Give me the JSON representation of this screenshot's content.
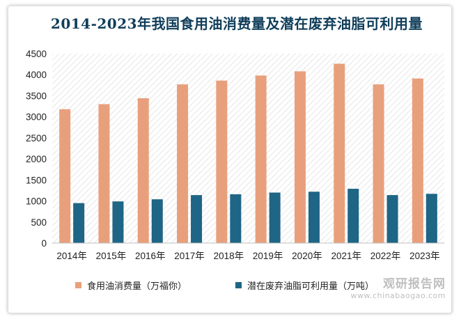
{
  "chart_data": {
    "type": "bar",
    "title": "2014-2023年我国食用油消费量及潜在废弃油脂可利用量",
    "categories": [
      "2014年",
      "2015年",
      "2016年",
      "2017年",
      "2018年",
      "2019年",
      "2020年",
      "2021年",
      "2022年",
      "2023年"
    ],
    "series": [
      {
        "name": "食用油消费量（万福你）",
        "color": "#e8a07c",
        "values": [
          3180,
          3300,
          3440,
          3770,
          3860,
          3980,
          4080,
          4260,
          3770,
          3910
        ]
      },
      {
        "name": "潜在废弃油脂可利用量（万吨）",
        "color": "#1f6585",
        "values": [
          950,
          990,
          1040,
          1140,
          1160,
          1200,
          1220,
          1290,
          1140,
          1170
        ]
      }
    ],
    "ylim": [
      0,
      4500
    ],
    "yticks": [
      0,
      500,
      1000,
      1500,
      2000,
      2500,
      3000,
      3500,
      4000,
      4500
    ],
    "grid": false,
    "legend_position": "bottom"
  },
  "watermark": {
    "main": "观研报告网",
    "sub": "www.chinabaogao.com"
  }
}
